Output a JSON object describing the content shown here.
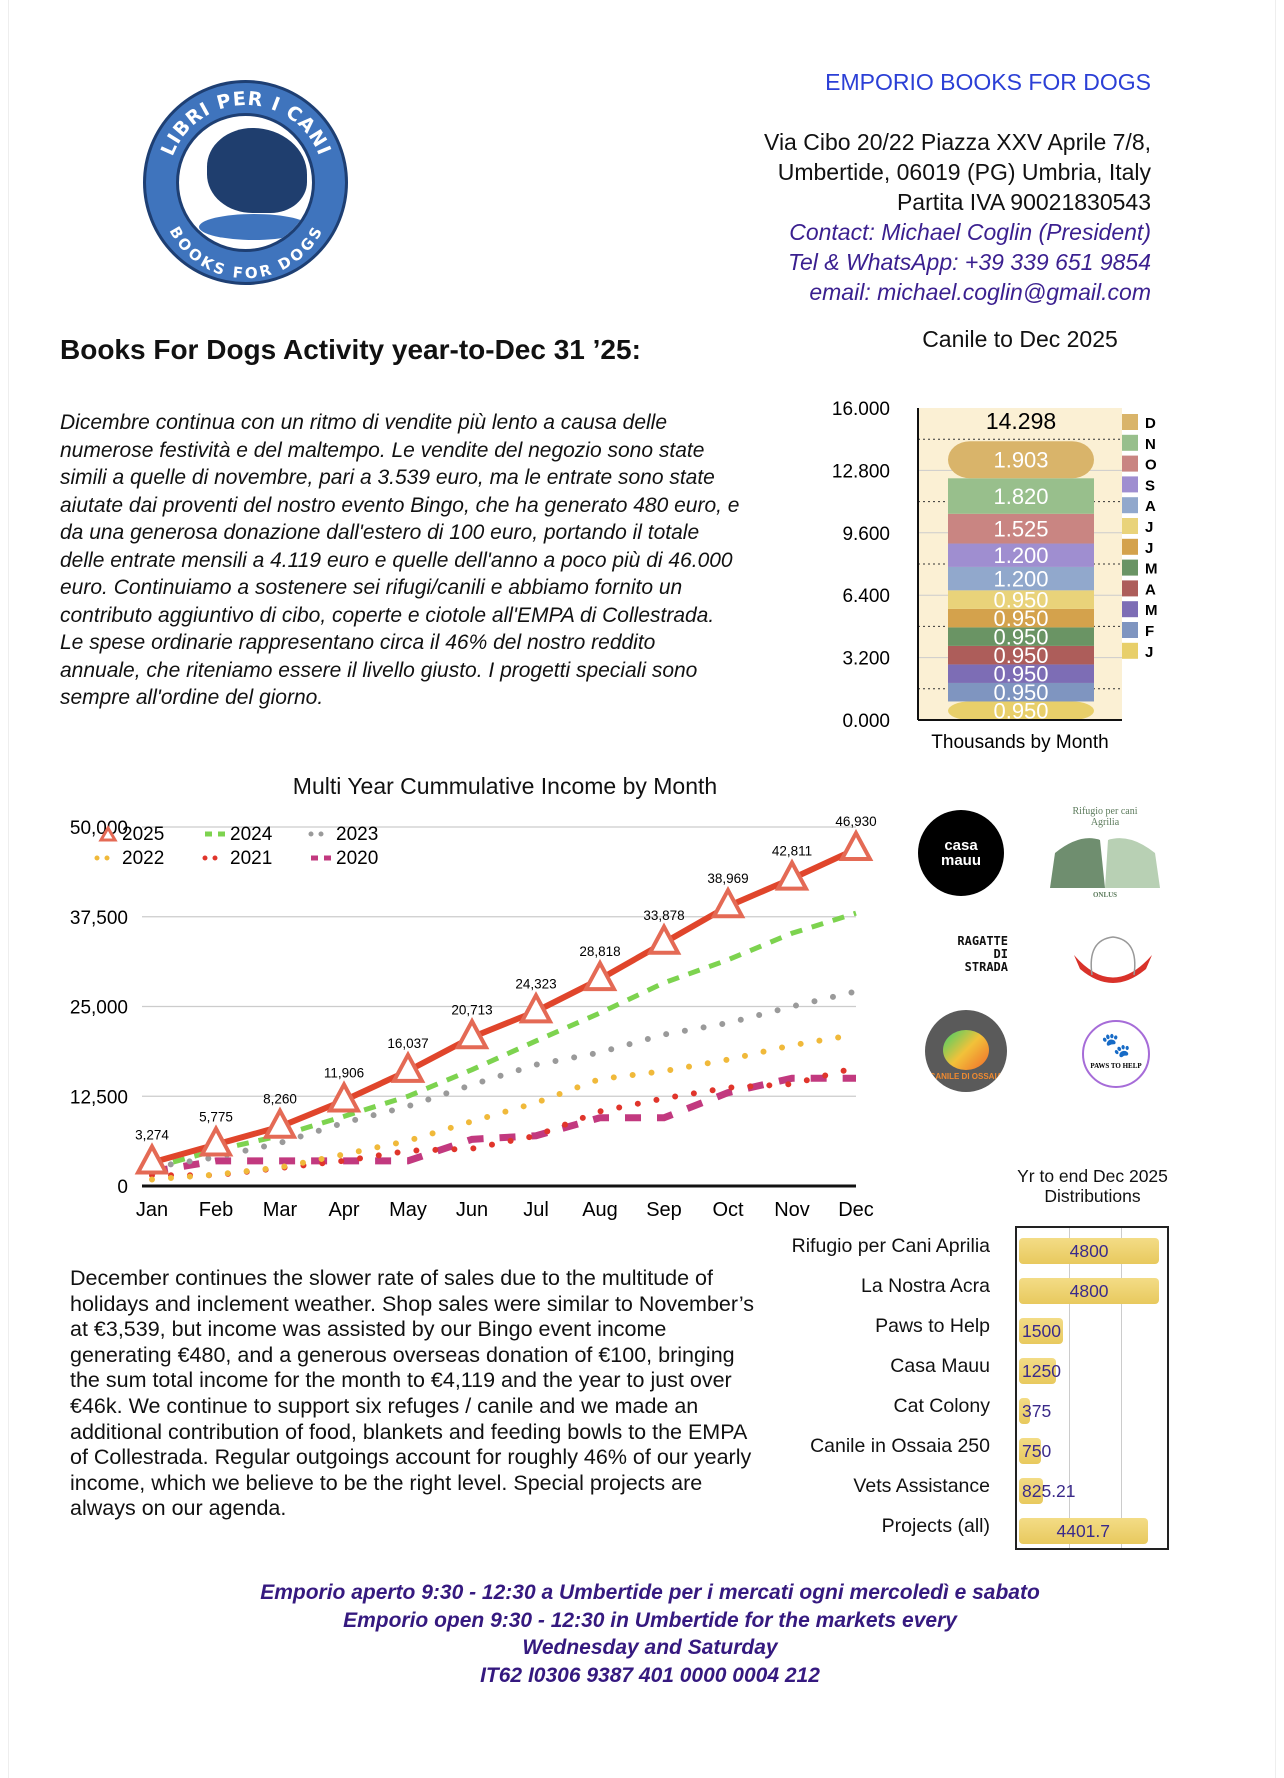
{
  "header": {
    "brand": "EMPORIO BOOKS FOR DOGS",
    "address_lines": [
      "Via Cibo 20/22 Piazza XXV Aprile 7/8,",
      "Umbertide, 06019 (PG) Umbria, Italy",
      "Partita IVA 90021830543"
    ],
    "contact": "Contact: Michael Coglin (President)",
    "phone": "Tel & WhatsApp: +39 339 651 9854",
    "email": "email: michael.coglin@gmail.com",
    "logo_text_top": "LIBRI PER I CANI",
    "logo_text_bottom": "BOOKS FOR DOGS"
  },
  "title": "Books For Dogs Activity year-to-Dec 31 ’25:",
  "italian_paragraph": "Dicembre continua con un ritmo di vendite più lento a causa delle numerose festività e del maltempo. Le vendite del negozio sono state simili a quelle di novembre, pari a 3.539 euro, ma le entrate sono state aiutate dai proventi del nostro evento Bingo, che ha generato 480 euro, e da una generosa donazione dall'estero di 100 euro, portando il totale delle entrate mensili a 4.119 euro e quelle dell'anno a poco più di 46.000 euro. Continuiamo a sostenere sei rifugi/canili e abbiamo fornito un contributo aggiuntivo di cibo, coperte e ciotole all'EMPA di Collestrada. Le spese ordinarie rappresentano circa il 46% del nostro reddito annuale, che riteniamo essere il livello giusto. I progetti speciali sono sempre all'ordine del giorno.",
  "english_paragraph": "December continues the slower rate of sales due to the multitude of holidays and inclement weather.  Shop sales were similar to November’s at €3,539, but income was assisted by our Bingo event income generating €480, and a generous overseas donation of €100, bringing the sum total income for the month to €4,119 and the year to just over €46k.  We continue to support six refuges / canile and we made an additional contribution of food, blankets and feeding bowls to the EMPA of Collestrada.  Regular outgoings account for roughly 46% of our yearly income, which we believe to be the right level.  Special projects are always on our agenda.",
  "footer": [
    "Emporio aperto 9:30 - 12:30 a Umbertide per i mercati ogni mercoledì e sabato",
    "Emporio open 9:30 - 12:30 in Umbertide for the markets every",
    "Wednesday and Saturday",
    "IT62 I0306 9387 401 0000 0004 212"
  ],
  "partner_logos": [
    {
      "name": "casa-mauu",
      "text": "casa mauu"
    },
    {
      "name": "rifugio-agrilia",
      "text": "Rifugio per cani Agrilia",
      "sub": "ONLUS"
    },
    {
      "name": "ragatte-di-strada",
      "text": "RAGATTE DI STRADA"
    },
    {
      "name": "la-nostra-acra",
      "text": ""
    },
    {
      "name": "canile-di-ossaia",
      "text": "CANILE DI OSSAIA"
    },
    {
      "name": "paws-to-help",
      "text": "PAWS TO HELP"
    }
  ],
  "chart_data": [
    {
      "type": "bar",
      "subtype": "stacked",
      "title": "Canile to Dec 2025",
      "xlabel": "Thousands by Month",
      "total_label": "14.298",
      "yticks": [
        "0.000",
        "3.200",
        "6.400",
        "9.600",
        "12.800",
        "16.000"
      ],
      "ylim": [
        0,
        16
      ],
      "legend_placement": "right",
      "segments": [
        {
          "label": "J",
          "value": 0.95,
          "value_label": "0.950",
          "color": "#e8cf6a"
        },
        {
          "label": "F",
          "value": 0.95,
          "value_label": "0.950",
          "color": "#7f95c0"
        },
        {
          "label": "M",
          "value": 0.95,
          "value_label": "0.950",
          "color": "#7d6db5"
        },
        {
          "label": "A",
          "value": 0.95,
          "value_label": "0.950",
          "color": "#ad5d5a"
        },
        {
          "label": "M",
          "value": 0.95,
          "value_label": "0.950",
          "color": "#6a9464"
        },
        {
          "label": "J",
          "value": 0.95,
          "value_label": "0.950",
          "color": "#d4a24c"
        },
        {
          "label": "J",
          "value": 0.95,
          "value_label": "0.950",
          "color": "#e9d37a"
        },
        {
          "label": "A",
          "value": 1.2,
          "value_label": "1.200",
          "color": "#91a8cc"
        },
        {
          "label": "S",
          "value": 1.2,
          "value_label": "1.200",
          "color": "#9f8ed0"
        },
        {
          "label": "O",
          "value": 1.525,
          "value_label": "1.525",
          "color": "#c98582"
        },
        {
          "label": "N",
          "value": 1.82,
          "value_label": "1.820",
          "color": "#98bf8c"
        },
        {
          "label": "D",
          "value": 1.903,
          "value_label": "1.903",
          "color": "#d9b46a"
        }
      ]
    },
    {
      "type": "line",
      "title": "Multi Year Cummulative Income by Month",
      "categories": [
        "Jan",
        "Feb",
        "Mar",
        "Apr",
        "May",
        "Jun",
        "Jul",
        "Aug",
        "Sep",
        "Oct",
        "Nov",
        "Dec"
      ],
      "yticks": [
        "0",
        "12,500",
        "25,000",
        "37,500",
        "50,000"
      ],
      "ylim": [
        0,
        50000
      ],
      "grid": true,
      "legend_placement": "top-left",
      "series": [
        {
          "name": "2025",
          "color": "#e0452b",
          "style": "solid-triangle",
          "values": [
            3274,
            5775,
            8260,
            11906,
            16037,
            20713,
            24323,
            28818,
            33878,
            38969,
            42811,
            46930
          ],
          "labels": [
            "3,274",
            "5,775",
            "8,260",
            "11,906",
            "16,037",
            "20,713",
            "24,323",
            "28,818",
            "33,878",
            "38,969",
            "42,811",
            "46,930"
          ]
        },
        {
          "name": "2024",
          "color": "#7dd34f",
          "style": "dashed",
          "values": [
            2500,
            5000,
            7000,
            9700,
            12500,
            16200,
            20200,
            24100,
            28300,
            31500,
            35200,
            38000
          ]
        },
        {
          "name": "2023",
          "color": "#9a9a9a",
          "style": "dotted",
          "values": [
            2600,
            4000,
            6000,
            8800,
            11100,
            14100,
            16900,
            18600,
            21100,
            22700,
            25000,
            27100
          ]
        },
        {
          "name": "2022",
          "color": "#f0b93a",
          "style": "dotted",
          "values": [
            900,
            1600,
            2600,
            4400,
            6300,
            9000,
            11600,
            14900,
            16000,
            17600,
            19600,
            21100
          ]
        },
        {
          "name": "2021",
          "color": "#e0352b",
          "style": "dotted",
          "values": [
            1500,
            1500,
            2500,
            3500,
            4900,
            5200,
            7000,
            10400,
            12200,
            13700,
            14200,
            16500
          ]
        },
        {
          "name": "2020",
          "color": "#c2397f",
          "style": "dashed-thick",
          "values": [
            2000,
            3500,
            3500,
            3500,
            3500,
            6500,
            7000,
            9500,
            9500,
            13000,
            15000,
            15000
          ]
        }
      ]
    },
    {
      "type": "bar",
      "orientation": "horizontal",
      "title": "Yr to end Dec 2025 Distributions",
      "xlim": [
        0,
        5000
      ],
      "categories": [
        "Rifugio per Cani Aprilia",
        "La Nostra Acra",
        "Paws to Help",
        "Casa Mauu",
        "Cat Colony",
        "Canile in Ossaia 250",
        "Vets Assistance",
        "Projects (all)"
      ],
      "values": [
        4800,
        4800,
        1500,
        1250,
        375,
        750,
        825.21,
        4401.7
      ],
      "labels": [
        "4800",
        "4800",
        "1500",
        "1250",
        "375",
        "750",
        "825.21",
        "4401.7"
      ],
      "color": "#efd275"
    }
  ]
}
